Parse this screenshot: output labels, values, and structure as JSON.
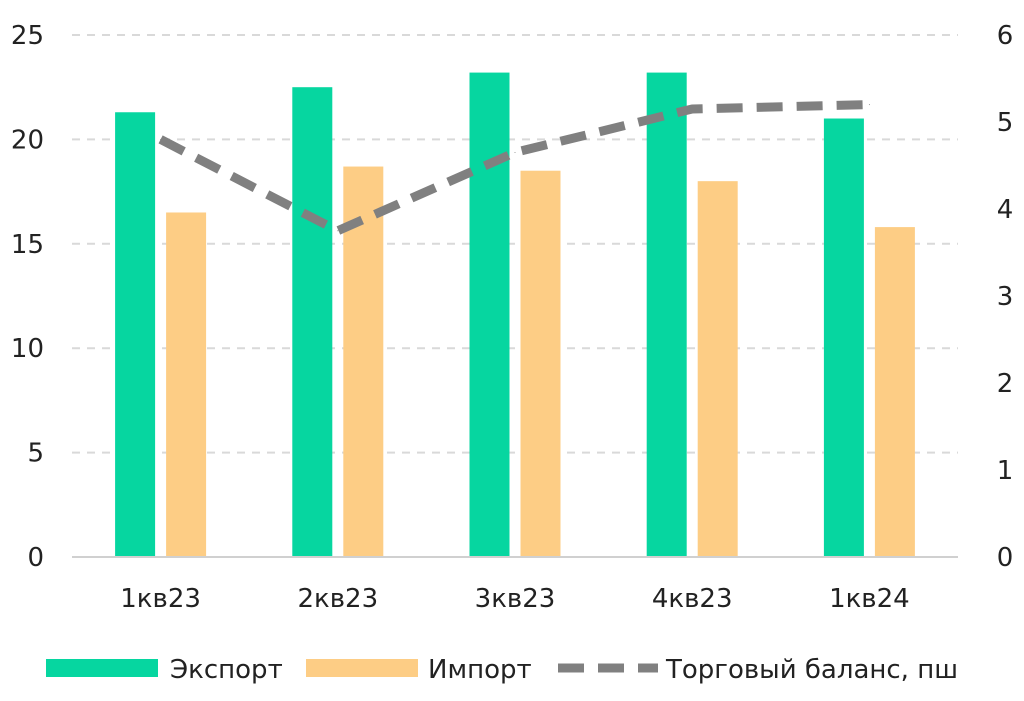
{
  "chart_data": {
    "type": "bar",
    "title": "",
    "xlabel": "",
    "ylabel": "",
    "categories": [
      "1кв23",
      "2кв23",
      "3кв23",
      "4кв23",
      "1кв24"
    ],
    "series": [
      {
        "name": "Экспорт",
        "kind": "bar",
        "axis": "left",
        "color": "#06d6a0",
        "values": [
          21.3,
          22.5,
          23.2,
          23.2,
          21.0
        ]
      },
      {
        "name": "Импорт",
        "kind": "bar",
        "axis": "left",
        "color": "#fdcd85",
        "values": [
          16.5,
          18.7,
          18.5,
          18.0,
          15.8
        ]
      },
      {
        "name": "Торговый баланс, пш",
        "kind": "line",
        "style": "dashed",
        "axis": "right",
        "color": "#808080",
        "values": [
          4.8,
          3.75,
          4.65,
          5.15,
          5.2
        ]
      }
    ],
    "ylim": [
      0,
      25
    ],
    "yticks": [
      "0",
      "5",
      "10",
      "15",
      "20",
      "25"
    ],
    "y2lim": [
      0,
      6
    ],
    "y2ticks": [
      "0",
      "1",
      "2",
      "3",
      "4",
      "5",
      "6"
    ],
    "grid": "horizontal dashed",
    "legend_position": "bottom"
  }
}
